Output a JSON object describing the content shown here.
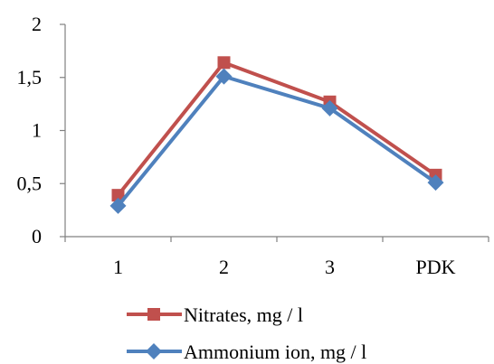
{
  "chart_data": {
    "type": "line",
    "categories": [
      "1",
      "2",
      "3",
      "PDK"
    ],
    "ylim": [
      0,
      2
    ],
    "yticks": [
      0,
      0.5,
      1,
      1.5,
      2
    ],
    "ytick_labels": [
      "0",
      "0,5",
      "1",
      "1,5",
      "2"
    ],
    "grid": false,
    "legend_position": "bottom",
    "series": [
      {
        "name": "Nitrates, mg / l",
        "values": [
          0.39,
          1.64,
          1.27,
          0.58
        ],
        "color": "#c0504d",
        "marker": "square"
      },
      {
        "name": "Ammonium ion, mg / l",
        "values": [
          0.29,
          1.51,
          1.21,
          0.51
        ],
        "color": "#4f81bd",
        "marker": "diamond"
      }
    ]
  }
}
